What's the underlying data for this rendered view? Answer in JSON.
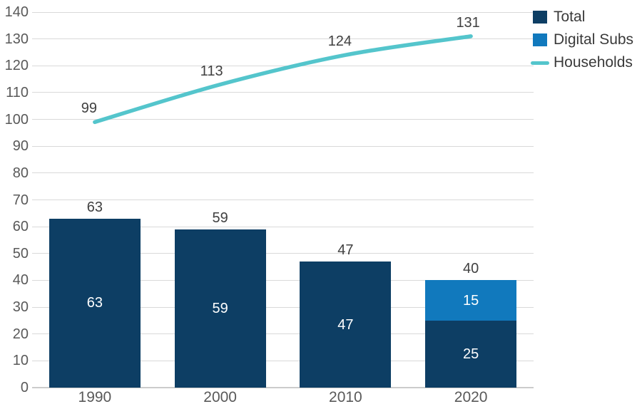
{
  "chart_data": {
    "type": "combo-bar-line",
    "categories": [
      "1990",
      "2000",
      "2010",
      "2020"
    ],
    "series": [
      {
        "name": "Total",
        "type": "bar",
        "stack": "bars",
        "color": "#0d3e64",
        "values": [
          63,
          59,
          47,
          25
        ]
      },
      {
        "name": "Digital Subs",
        "type": "bar",
        "stack": "bars",
        "color": "#1179bd",
        "values": [
          null,
          null,
          null,
          15
        ]
      },
      {
        "name": "Households",
        "type": "line",
        "color": "#54c5cc",
        "values": [
          99,
          113,
          124,
          131
        ]
      }
    ],
    "bar_total_labels": [
      "63",
      "59",
      "47",
      "40"
    ],
    "bar_segment_labels": [
      [
        {
          "series": 0,
          "text": "63"
        }
      ],
      [
        {
          "series": 0,
          "text": "59"
        }
      ],
      [
        {
          "series": 0,
          "text": "47"
        }
      ],
      [
        {
          "series": 0,
          "text": "25"
        },
        {
          "series": 1,
          "text": "15"
        }
      ]
    ],
    "line_point_labels": [
      "99",
      "113",
      "124",
      "131"
    ],
    "ylim": [
      0,
      140
    ],
    "yticks": [
      0,
      10,
      20,
      30,
      40,
      50,
      60,
      70,
      80,
      90,
      100,
      110,
      120,
      130,
      140
    ],
    "grid": true,
    "legend_position": "top-right",
    "legend": [
      {
        "label": "Total",
        "swatch": "square",
        "color": "#0d3e64"
      },
      {
        "label": "Digital Subs",
        "swatch": "square",
        "color": "#1179bd"
      },
      {
        "label": "Households",
        "swatch": "line",
        "color": "#54c5cc"
      }
    ],
    "colors": {
      "grid": "#d9d9d9",
      "axis_text": "#595959",
      "data_label_text": "#404040",
      "inside_label_text": "#ffffff"
    }
  }
}
